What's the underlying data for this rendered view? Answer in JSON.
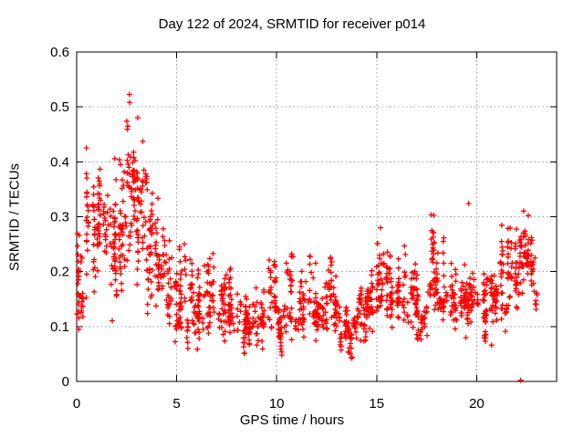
{
  "chart_data": {
    "type": "scatter",
    "title": "Day 122 of 2024, SRMTID for receiver p014",
    "xlabel": "GPS time / hours",
    "ylabel": "SRMTID / TECUs",
    "xlim": [
      0,
      24
    ],
    "ylim": [
      0,
      0.6
    ],
    "xticks": [
      0,
      5,
      10,
      15,
      20
    ],
    "yticks": [
      0,
      0.1,
      0.2,
      0.3,
      0.4,
      0.5,
      0.6
    ],
    "grid": {
      "show": true,
      "style": "dashed",
      "color": "#a0a0a0"
    },
    "legend": "none",
    "marker": {
      "shape": "plus",
      "color": "#ff0000",
      "size": 6,
      "stroke_width": 1.3
    },
    "axis_color": "#000000",
    "points_are_estimated_from_density": true,
    "density_profile_columns": [
      "t_start_hours",
      "t_end_hours",
      "n_points",
      "y_min_TECUs",
      "y_max_TECUs",
      "y_center_TECUs"
    ],
    "density_profile": [
      [
        0.0,
        0.5,
        35,
        0.05,
        0.3,
        0.18
      ],
      [
        0.5,
        1.0,
        40,
        0.1,
        0.46,
        0.26
      ],
      [
        1.0,
        1.5,
        45,
        0.12,
        0.49,
        0.3
      ],
      [
        1.5,
        2.0,
        45,
        0.08,
        0.48,
        0.28
      ],
      [
        2.0,
        2.5,
        45,
        0.1,
        0.46,
        0.28
      ],
      [
        2.5,
        3.0,
        50,
        0.15,
        0.57,
        0.35
      ],
      [
        3.0,
        3.5,
        50,
        0.12,
        0.55,
        0.34
      ],
      [
        3.5,
        4.0,
        42,
        0.06,
        0.42,
        0.23
      ],
      [
        4.0,
        4.5,
        38,
        0.1,
        0.35,
        0.2
      ],
      [
        4.5,
        5.0,
        36,
        0.05,
        0.28,
        0.16
      ],
      [
        5.0,
        5.5,
        36,
        0.07,
        0.33,
        0.14
      ],
      [
        5.5,
        6.0,
        34,
        0.04,
        0.25,
        0.12
      ],
      [
        6.0,
        6.5,
        34,
        0.04,
        0.23,
        0.11
      ],
      [
        6.5,
        7.0,
        34,
        0.05,
        0.29,
        0.13
      ],
      [
        7.0,
        7.5,
        34,
        0.05,
        0.24,
        0.12
      ],
      [
        7.5,
        8.0,
        34,
        0.04,
        0.24,
        0.11
      ],
      [
        8.0,
        8.5,
        34,
        0.04,
        0.2,
        0.1
      ],
      [
        8.5,
        9.0,
        34,
        0.05,
        0.21,
        0.11
      ],
      [
        9.0,
        9.5,
        34,
        0.04,
        0.22,
        0.11
      ],
      [
        9.5,
        10.0,
        34,
        0.05,
        0.28,
        0.12
      ],
      [
        10.0,
        10.5,
        34,
        0.03,
        0.17,
        0.09
      ],
      [
        10.5,
        11.0,
        34,
        0.04,
        0.27,
        0.11
      ],
      [
        11.0,
        11.5,
        34,
        0.05,
        0.25,
        0.11
      ],
      [
        11.5,
        12.0,
        34,
        0.05,
        0.25,
        0.11
      ],
      [
        12.0,
        12.5,
        36,
        0.07,
        0.22,
        0.13
      ],
      [
        12.5,
        13.0,
        36,
        0.07,
        0.26,
        0.14
      ],
      [
        13.0,
        13.5,
        34,
        0.05,
        0.2,
        0.11
      ],
      [
        13.5,
        14.0,
        34,
        0.03,
        0.16,
        0.09
      ],
      [
        14.0,
        14.5,
        34,
        0.04,
        0.2,
        0.1
      ],
      [
        14.5,
        15.0,
        36,
        0.07,
        0.22,
        0.13
      ],
      [
        15.0,
        15.5,
        38,
        0.1,
        0.3,
        0.16
      ],
      [
        15.5,
        16.0,
        38,
        0.08,
        0.32,
        0.16
      ],
      [
        16.0,
        16.5,
        38,
        0.08,
        0.26,
        0.14
      ],
      [
        16.5,
        17.0,
        34,
        0.06,
        0.27,
        0.12
      ],
      [
        17.0,
        17.5,
        34,
        0.03,
        0.21,
        0.1
      ],
      [
        17.5,
        18.0,
        38,
        0.08,
        0.37,
        0.16
      ],
      [
        18.0,
        18.5,
        38,
        0.07,
        0.31,
        0.14
      ],
      [
        18.5,
        19.0,
        34,
        0.06,
        0.25,
        0.13
      ],
      [
        19.0,
        19.5,
        34,
        0.07,
        0.26,
        0.14
      ],
      [
        19.5,
        20.0,
        35,
        0.07,
        0.27,
        0.14
      ],
      [
        20.0,
        20.5,
        35,
        0.05,
        0.25,
        0.13
      ],
      [
        20.5,
        21.0,
        38,
        0.06,
        0.29,
        0.15
      ],
      [
        21.0,
        21.5,
        38,
        0.05,
        0.31,
        0.16
      ],
      [
        21.5,
        22.0,
        40,
        0.1,
        0.35,
        0.2
      ],
      [
        22.0,
        22.4,
        35,
        0.1,
        0.36,
        0.23
      ],
      [
        22.4,
        22.8,
        30,
        0.14,
        0.33,
        0.22
      ],
      [
        22.8,
        23.0,
        12,
        0.1,
        0.28,
        0.17
      ]
    ],
    "extra_points": [
      [
        22.2,
        0.002
      ],
      [
        19.6,
        0.324
      ]
    ],
    "seed": 20240122
  }
}
